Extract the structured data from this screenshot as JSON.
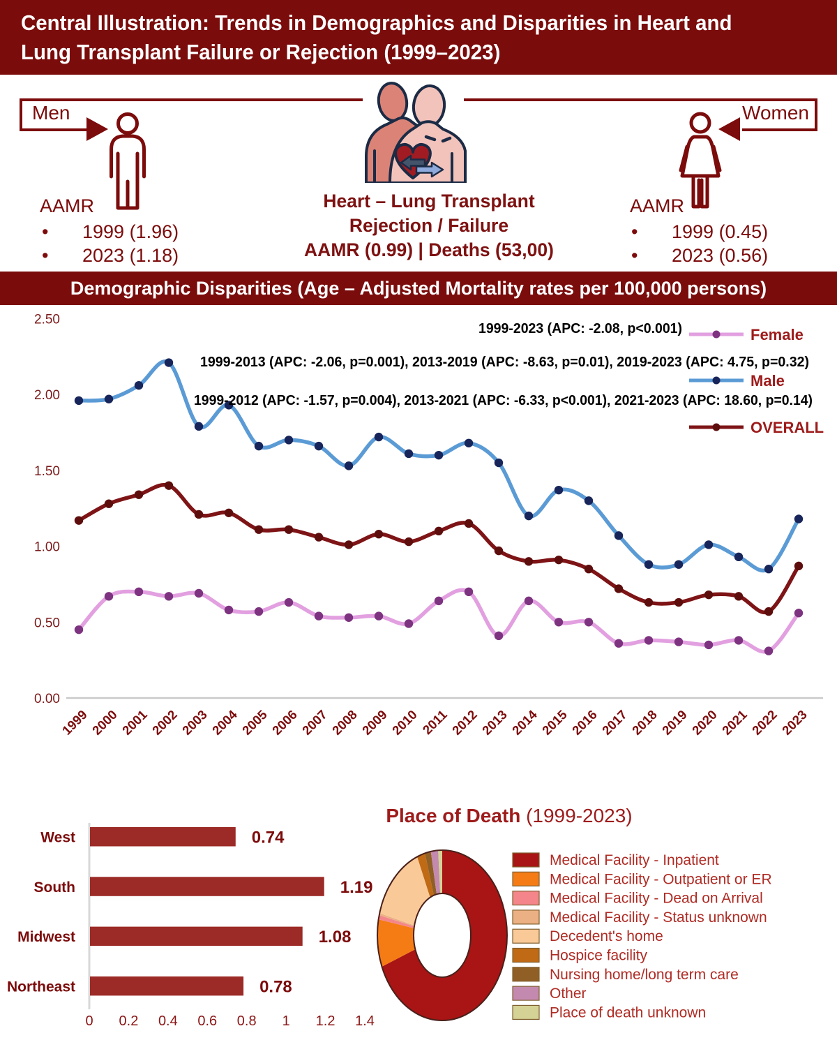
{
  "title": {
    "line1": "Central Illustration: Trends in Demographics and Disparities in Heart and",
    "line2": "Lung Transplant Failure or Rejection (1999–2023)"
  },
  "mid": {
    "men_label": "Men",
    "women_label": "Women",
    "men_aamr": {
      "heading": "AAMR",
      "items": [
        "1999 (1.96)",
        "2023 (1.18)"
      ]
    },
    "women_aamr": {
      "heading": "AAMR",
      "items": [
        "1999 (0.45)",
        "2023 (0.56)"
      ]
    },
    "center": {
      "line1": "Heart – Lung Transplant",
      "line2": "Rejection / Failure",
      "line3": "AAMR (0.99) | Deaths (53,00)"
    },
    "icons": {
      "left": "male-figure-icon",
      "right": "female-figure-icon",
      "center": "heart-lung-transplant-icon"
    }
  },
  "band2": "Demographic Disparities (Age – Adjusted Mortality rates per 100,000 persons)",
  "colors": {
    "banner": "#7B0C0C",
    "dark_red_text": "#7C0B0B",
    "male_line": "#5B9BD5",
    "male_marker": "#17255A",
    "overall_line": "#7E1416",
    "overall_marker": "#5E0D0D",
    "female_line": "#E2A0E0",
    "female_marker": "#7D3380",
    "bar_fill": "#9C2A26",
    "annotation_text": "#000000",
    "legend_label": "#9E1B1B"
  },
  "chart_data": [
    {
      "type": "line",
      "title": "Demographic Disparities (Age-Adjusted Mortality rates per 100,000 persons)",
      "x": [
        1999,
        2000,
        2001,
        2002,
        2003,
        2004,
        2005,
        2006,
        2007,
        2008,
        2009,
        2010,
        2011,
        2012,
        2013,
        2014,
        2015,
        2016,
        2017,
        2018,
        2019,
        2020,
        2021,
        2022,
        2023
      ],
      "ylim": [
        0,
        2.5
      ],
      "yticks": [
        "0.00",
        "0.50",
        "1.00",
        "1.50",
        "2.00",
        "2.50"
      ],
      "series": [
        {
          "name": "Female",
          "color": "#E2A0E0",
          "marker": "#7D3380",
          "values": [
            0.45,
            0.67,
            0.7,
            0.67,
            0.69,
            0.58,
            0.57,
            0.63,
            0.54,
            0.53,
            0.54,
            0.49,
            0.64,
            0.7,
            0.41,
            0.64,
            0.5,
            0.5,
            0.36,
            0.38,
            0.37,
            0.35,
            0.38,
            0.31,
            0.56
          ],
          "annotation": "1999-2023 (APC: -2.08, p<0.001)"
        },
        {
          "name": "Male",
          "color": "#5B9BD5",
          "marker": "#17255A",
          "values": [
            1.96,
            1.97,
            2.06,
            2.21,
            1.79,
            1.93,
            1.66,
            1.7,
            1.66,
            1.53,
            1.72,
            1.61,
            1.6,
            1.68,
            1.55,
            1.2,
            1.37,
            1.3,
            1.07,
            0.88,
            0.88,
            1.01,
            0.93,
            0.85,
            1.18
          ],
          "annotation": "1999-2013 (APC: -2.06, p=0.001), 2013-2019 (APC: -8.63, p=0.01), 2019-2023 (APC: 4.75, p=0.32)"
        },
        {
          "name": "OVERALL",
          "color": "#7E1416",
          "marker": "#5E0D0D",
          "values": [
            1.17,
            1.28,
            1.34,
            1.4,
            1.21,
            1.22,
            1.11,
            1.11,
            1.06,
            1.01,
            1.08,
            1.03,
            1.1,
            1.15,
            0.97,
            0.9,
            0.91,
            0.85,
            0.72,
            0.63,
            0.63,
            0.68,
            0.67,
            0.57,
            0.87
          ],
          "annotation": "1999-2012 (APC: -1.57, p=0.004), 2013-2021 (APC: -6.33, p<0.001), 2021-2023 (APC: 18.60, p=0.14)"
        }
      ]
    },
    {
      "type": "bar",
      "orientation": "horizontal",
      "categories": [
        "West",
        "South",
        "Midwest",
        "Northeast"
      ],
      "values": [
        0.74,
        1.19,
        1.08,
        0.78
      ],
      "xticks": [
        "0",
        "0.2",
        "0.4",
        "0.6",
        "0.8",
        "1",
        "1.2",
        "1.4"
      ],
      "xlim": [
        0,
        1.4
      ]
    },
    {
      "type": "pie",
      "title_bold": "Place of Death",
      "title_rest": " (1999-2023)",
      "slices": [
        {
          "label": "Medical Facility - Inpatient",
          "color": "#A91414",
          "value": 69.0
        },
        {
          "label": "Medical Facility - Outpatient or ER",
          "color": "#F57C14",
          "value": 9.0
        },
        {
          "label": "Medical Facility - Dead on Arrival",
          "color": "#F4868B",
          "value": 0.8
        },
        {
          "label": "Medical Facility - Status unknown",
          "color": "#EBB083",
          "value": 0.4
        },
        {
          "label": "Decedent's home",
          "color": "#FAC998",
          "value": 14.5
        },
        {
          "label": "Hospice facility",
          "color": "#C06A15",
          "value": 2.0
        },
        {
          "label": "Nursing home/long term care",
          "color": "#8F5F25",
          "value": 1.5
        },
        {
          "label": "Other",
          "color": "#C489AE",
          "value": 1.8
        },
        {
          "label": "Place of death unknown",
          "color": "#D4D295",
          "value": 1.0
        }
      ]
    }
  ]
}
